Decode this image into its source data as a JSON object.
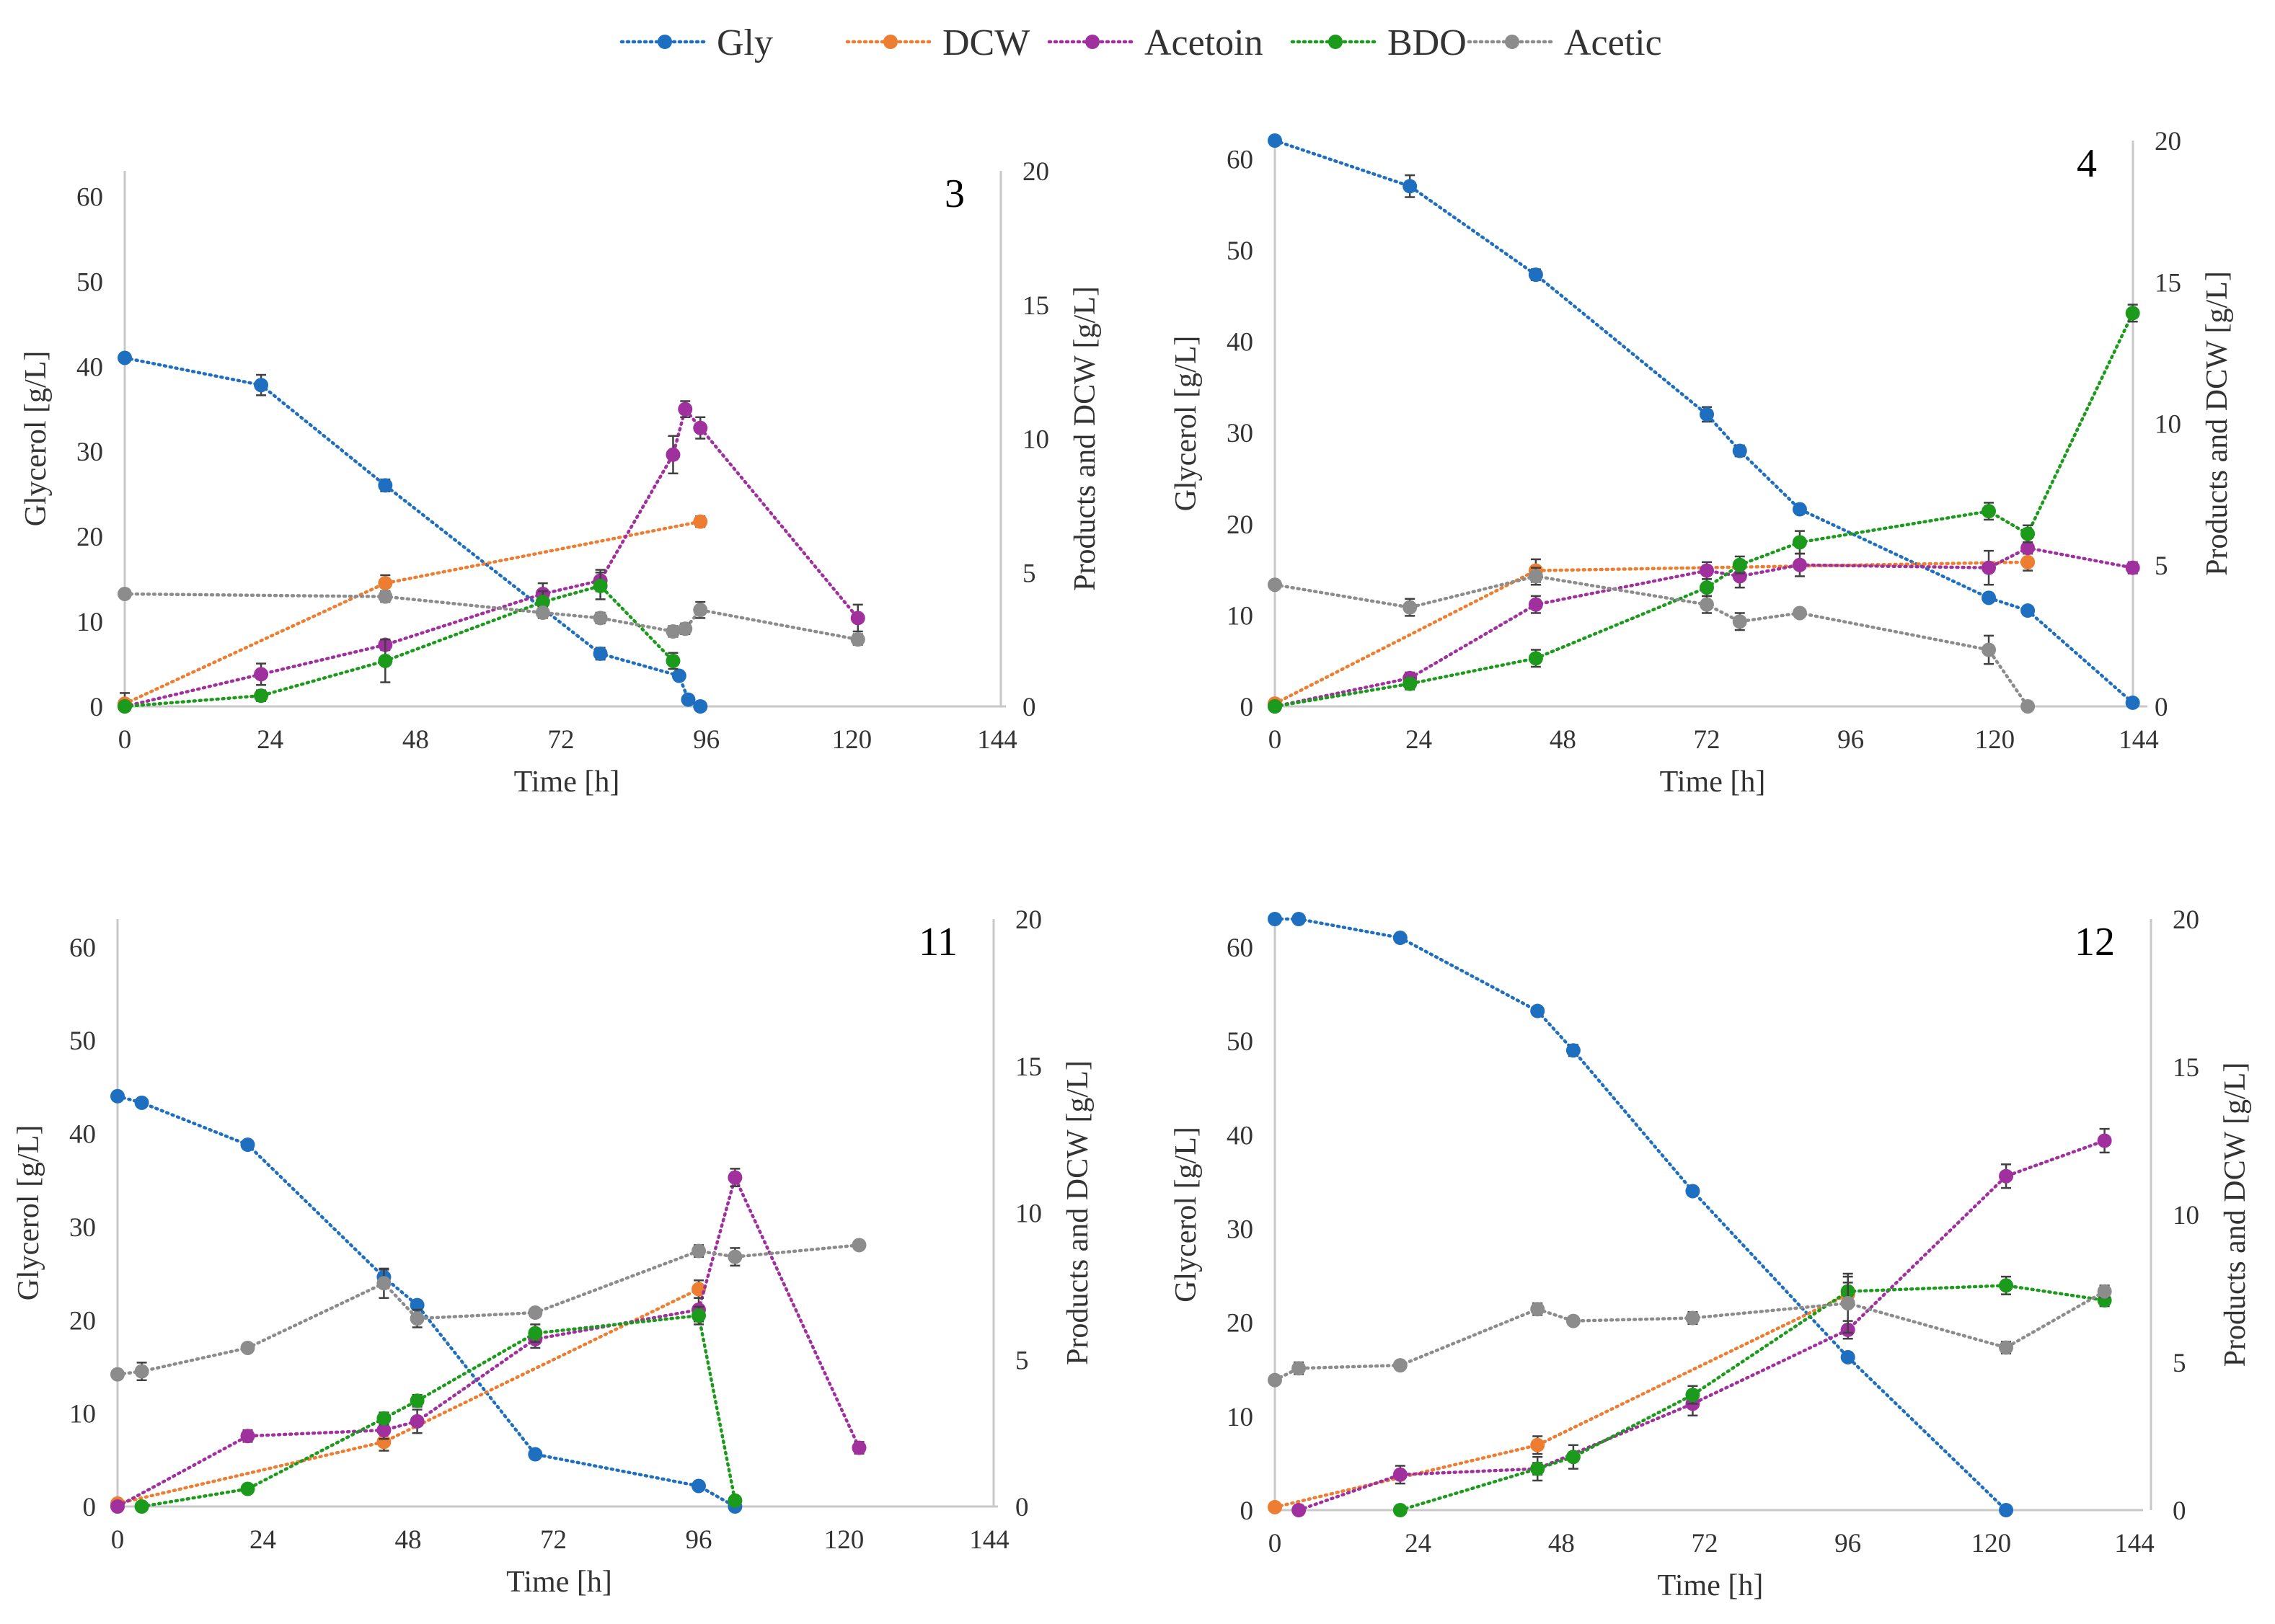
{
  "legend": [
    {
      "name": "Gly",
      "color": "#1f6fc1"
    },
    {
      "name": "DCW",
      "color": "#ed7d31"
    },
    {
      "name": "Acetoin",
      "color": "#a0309e"
    },
    {
      "name": "BDO",
      "color": "#1b9a1b"
    },
    {
      "name": "Acetic",
      "color": "#8c8c8c"
    }
  ],
  "chart_data": [
    {
      "type": "line",
      "panel_label": "3",
      "xlabel": "Time [h]",
      "ylabel_left": "Glycerol [g/L]",
      "ylabel_right": "Products and DCW [g/L]",
      "xticks": [
        0,
        24,
        48,
        72,
        96,
        120,
        144
      ],
      "yticks_left": [
        0,
        10,
        20,
        30,
        40,
        50,
        60
      ],
      "yticks_right": [
        0,
        5,
        10,
        15,
        20
      ],
      "xlim": [
        0,
        144
      ],
      "ylim_left": [
        0,
        63
      ],
      "ylim_right": [
        0,
        20
      ],
      "series": [
        {
          "name": "Gly",
          "axis": "left",
          "x": [
            0,
            22.5,
            43,
            78.5,
            91.5,
            93,
            95
          ],
          "y": [
            41,
            37.8,
            26,
            6.2,
            3.6,
            0.8,
            0
          ],
          "err": [
            0.5,
            1.2,
            0.7,
            0.7,
            0.5,
            0.4,
            0.3
          ]
        },
        {
          "name": "DCW",
          "axis": "right",
          "x": [
            0,
            43,
            95
          ],
          "y": [
            0.1,
            4.6,
            6.9
          ],
          "err": [
            0.4,
            0.3,
            0.2
          ]
        },
        {
          "name": "Acetoin",
          "axis": "right",
          "x": [
            0,
            22.5,
            43,
            69,
            78.5,
            90.5,
            92.5,
            95,
            121
          ],
          "y": [
            0,
            1.2,
            2.3,
            4.2,
            4.7,
            9.4,
            11.1,
            10.4,
            3.3
          ],
          "err": [
            0.1,
            0.4,
            0.2,
            0.4,
            0.4,
            0.7,
            0.3,
            0.4,
            0.5
          ]
        },
        {
          "name": "BDO",
          "axis": "right",
          "x": [
            0,
            22.5,
            43,
            69,
            78.5,
            90.5
          ],
          "y": [
            0,
            0.4,
            1.7,
            3.9,
            4.5,
            1.7
          ],
          "err": [
            0.1,
            0.2,
            0.8,
            0.4,
            0.5,
            0.3
          ]
        },
        {
          "name": "Acetic",
          "axis": "right",
          "x": [
            0,
            43,
            69,
            78.5,
            90.5,
            92.5,
            95,
            121
          ],
          "y": [
            4.2,
            4.1,
            3.5,
            3.3,
            2.8,
            2.9,
            3.6,
            2.5
          ],
          "err": [
            0.1,
            0.2,
            0.2,
            0.2,
            0.2,
            0.2,
            0.3,
            0.2
          ]
        }
      ]
    },
    {
      "type": "line",
      "panel_label": "4",
      "xlabel": "Time [h]",
      "ylabel_left": "Glycerol [g/L]",
      "ylabel_right": "Products and DCW [g/L]",
      "xticks": [
        0,
        24,
        48,
        72,
        96,
        120,
        144
      ],
      "yticks_left": [
        0,
        10,
        20,
        30,
        40,
        50,
        60
      ],
      "yticks_right": [
        0,
        5,
        10,
        15,
        20
      ],
      "xlim": [
        0,
        144
      ],
      "ylim_left": [
        0,
        62
      ],
      "ylim_right": [
        0,
        20
      ],
      "series": [
        {
          "name": "Gly",
          "axis": "left",
          "x": [
            0,
            22.5,
            43.5,
            72,
            77.5,
            87.5,
            119,
            125.5,
            143
          ],
          "y": [
            62,
            57,
            47.3,
            32,
            28,
            21.6,
            11.9,
            10.5,
            0.4
          ],
          "err": [
            0.4,
            1.2,
            0.6,
            0.8,
            0.6,
            0.4,
            0.5,
            0.3,
            0.3
          ]
        },
        {
          "name": "DCW",
          "axis": "right",
          "x": [
            0,
            43.5,
            125.5
          ],
          "y": [
            0.1,
            4.8,
            5.1
          ],
          "err": [
            0.1,
            0.4,
            0.3
          ]
        },
        {
          "name": "Acetoin",
          "axis": "right",
          "x": [
            0,
            22.5,
            43.5,
            72,
            77.5,
            87.5,
            119,
            125.5,
            143
          ],
          "y": [
            0,
            1,
            3.6,
            4.8,
            4.6,
            5,
            4.9,
            5.6,
            4.9
          ],
          "err": [
            0.1,
            0.2,
            0.3,
            0.3,
            0.4,
            0.4,
            0.6,
            0.2,
            0.2
          ]
        },
        {
          "name": "BDO",
          "axis": "right",
          "x": [
            0,
            22.5,
            43.5,
            72,
            77.5,
            87.5,
            119,
            125.5,
            143
          ],
          "y": [
            0,
            0.8,
            1.7,
            4.2,
            5,
            5.8,
            6.9,
            6.1,
            13.9
          ],
          "err": [
            0.1,
            0.2,
            0.3,
            0.3,
            0.3,
            0.4,
            0.3,
            0.3,
            0.3
          ]
        },
        {
          "name": "Acetic",
          "axis": "right",
          "x": [
            0,
            22.5,
            43.5,
            72,
            77.5,
            87.5,
            119,
            125.5
          ],
          "y": [
            4.3,
            3.5,
            4.6,
            3.6,
            3,
            3.3,
            2,
            0
          ],
          "err": [
            0.1,
            0.3,
            0.3,
            0.3,
            0.3,
            0.1,
            0.5,
            0.1
          ]
        }
      ]
    },
    {
      "type": "line",
      "panel_label": "11",
      "xlabel": "Time [h]",
      "ylabel_left": "Glycerol [g/L]",
      "ylabel_right": "Products and DCW [g/L]",
      "xticks": [
        0,
        24,
        48,
        72,
        96,
        120,
        144
      ],
      "yticks_left": [
        0,
        10,
        20,
        30,
        40,
        50,
        60
      ],
      "yticks_right": [
        0,
        5,
        10,
        15,
        20
      ],
      "xlim": [
        0,
        144
      ],
      "ylim_left": [
        0,
        63
      ],
      "ylim_right": [
        0,
        20
      ],
      "series": [
        {
          "name": "Gly",
          "axis": "left",
          "x": [
            0,
            4,
            21.5,
            44,
            49.5,
            69,
            96,
            102
          ],
          "y": [
            44,
            43.3,
            38.8,
            24.6,
            21.6,
            5.6,
            2.2,
            0
          ],
          "err": [
            0.3,
            0.4,
            0.4,
            0.8,
            0.4,
            0.3,
            0.3,
            0.3
          ]
        },
        {
          "name": "DCW",
          "axis": "right",
          "x": [
            0,
            44,
            96
          ],
          "y": [
            0.1,
            2.2,
            7.4
          ],
          "err": [
            0.1,
            0.3,
            0.3
          ]
        },
        {
          "name": "Acetoin",
          "axis": "right",
          "x": [
            0,
            21.5,
            44,
            49.5,
            69,
            96,
            102,
            122.5
          ],
          "y": [
            0,
            2.4,
            2.6,
            2.9,
            5.7,
            6.7,
            11.2,
            2
          ],
          "err": [
            0.1,
            0.2,
            0.3,
            0.4,
            0.3,
            0.4,
            0.3,
            0.2
          ]
        },
        {
          "name": "BDO",
          "axis": "right",
          "x": [
            4,
            21.5,
            44,
            49.5,
            69,
            96,
            102
          ],
          "y": [
            0,
            0.6,
            3,
            3.6,
            5.9,
            6.5,
            0.2
          ],
          "err": [
            0.1,
            0.1,
            0.2,
            0.2,
            0.3,
            0.3,
            0.1
          ]
        },
        {
          "name": "Acetic",
          "axis": "right",
          "x": [
            0,
            4,
            21.5,
            44,
            49.5,
            69,
            96,
            102,
            122.5
          ],
          "y": [
            4.5,
            4.6,
            5.4,
            7.6,
            6.4,
            6.6,
            8.7,
            8.5,
            8.9
          ],
          "err": [
            0.1,
            0.3,
            0.1,
            0.5,
            0.3,
            0.1,
            0.2,
            0.3,
            0.1
          ]
        }
      ]
    },
    {
      "type": "line",
      "panel_label": "12",
      "xlabel": "Time [h]",
      "ylabel_left": "Glycerol [g/L]",
      "ylabel_right": "Products and DCW [g/L]",
      "xticks": [
        0,
        24,
        48,
        72,
        96,
        120,
        144
      ],
      "yticks_left": [
        0,
        10,
        20,
        30,
        40,
        50,
        60
      ],
      "yticks_right": [
        0,
        5,
        10,
        15,
        20
      ],
      "xlim": [
        0,
        144
      ],
      "ylim_left": [
        0,
        63
      ],
      "ylim_right": [
        0,
        20
      ],
      "series": [
        {
          "name": "Gly",
          "axis": "left",
          "x": [
            0,
            4,
            21,
            44,
            50,
            70,
            96,
            122.5
          ],
          "y": [
            63,
            63,
            61,
            53.2,
            49,
            34,
            16.3,
            0
          ],
          "err": [
            0.3,
            0.3,
            0.3,
            0.3,
            0.6,
            0.3,
            0.4,
            0.3
          ]
        },
        {
          "name": "DCW",
          "axis": "right",
          "x": [
            0,
            44,
            96
          ],
          "y": [
            0.1,
            2.2,
            7.3
          ],
          "err": [
            0.1,
            0.3,
            0.4
          ]
        },
        {
          "name": "Acetoin",
          "axis": "right",
          "x": [
            4,
            21,
            44,
            70,
            96,
            122.5,
            139
          ],
          "y": [
            0,
            1.2,
            1.4,
            3.6,
            6.1,
            11.3,
            12.5
          ],
          "err": [
            0.1,
            0.3,
            0.2,
            0.4,
            0.3,
            0.4,
            0.4
          ]
        },
        {
          "name": "BDO",
          "axis": "right",
          "x": [
            21,
            44,
            50,
            70,
            96,
            122.5,
            139
          ],
          "y": [
            0,
            1.4,
            1.8,
            3.9,
            7.4,
            7.6,
            7.1
          ],
          "err": [
            0.1,
            0.4,
            0.4,
            0.3,
            0.5,
            0.3,
            0.2
          ]
        },
        {
          "name": "Acetic",
          "axis": "right",
          "x": [
            0,
            4,
            21,
            44,
            50,
            70,
            96,
            122.5,
            139
          ],
          "y": [
            4.4,
            4.8,
            4.9,
            6.8,
            6.4,
            6.5,
            7,
            5.5,
            7.4
          ],
          "err": [
            0.1,
            0.2,
            0.1,
            0.2,
            0.1,
            0.2,
            1,
            0.2,
            0.2
          ]
        }
      ]
    }
  ]
}
